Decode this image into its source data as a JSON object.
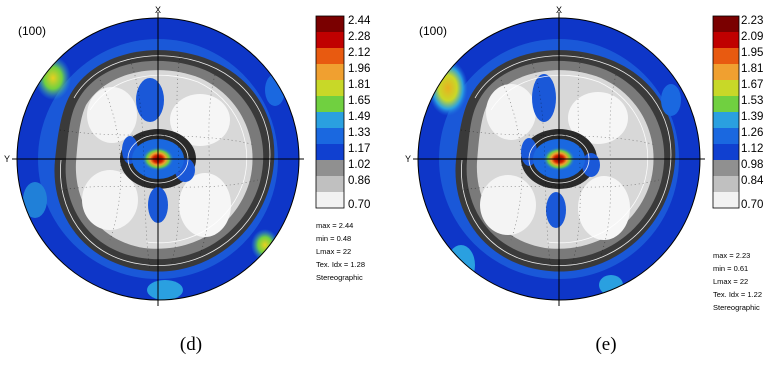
{
  "panels": [
    {
      "id": "d",
      "plane": "(100)",
      "axis_top": "X",
      "axis_left": "Y",
      "caption": "(d)",
      "scale": [
        "2.44",
        "2.28",
        "2.12",
        "1.96",
        "1.81",
        "1.65",
        "1.49",
        "1.33",
        "1.17",
        "1.02",
        "0.86",
        "0.70"
      ],
      "stats": [
        "max = 2.44",
        "min = 0.48",
        "Lmax = 22",
        "Tex. Idx = 1.28",
        "Stereographic"
      ]
    },
    {
      "id": "e",
      "plane": "(100)",
      "axis_top": "X",
      "axis_left": "Y",
      "caption": "(e)",
      "scale": [
        "2.23",
        "2.09",
        "1.95",
        "1.81",
        "1.67",
        "1.53",
        "1.39",
        "1.26",
        "1.12",
        "0.98",
        "0.84",
        "0.70"
      ],
      "stats": [
        "max = 2.23",
        "min = 0.61",
        "Lmax = 22",
        "Tex. Idx = 1.22",
        "Stereographic"
      ]
    }
  ],
  "colors": {
    "scale": [
      "#7a0000",
      "#c00000",
      "#e85a10",
      "#f0a030",
      "#c8d828",
      "#70d040",
      "#2aa0e0",
      "#1a68e0",
      "#1040d0",
      "#909090",
      "#c0c0c0",
      "#f2f2f2"
    ],
    "background": "#0e36c8"
  }
}
